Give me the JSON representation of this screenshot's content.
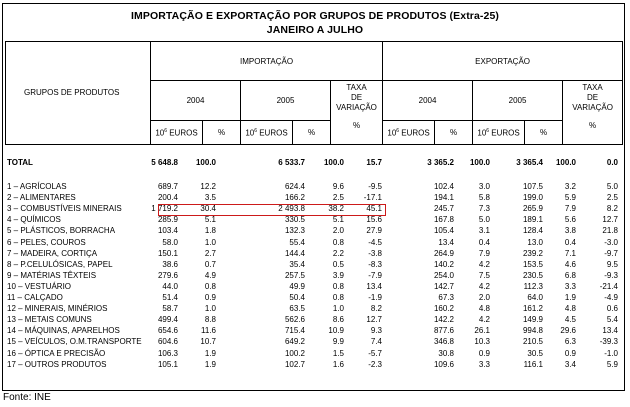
{
  "title": "IMPORTAÇÃO E EXPORTAÇÃO POR GRUPOS DE PRODUTOS (Extra-25)",
  "subtitle": "JANEIRO A JULHO",
  "header": {
    "groups": "GRUPOS DE PRODUTOS",
    "importacao": "IMPORTAÇÃO",
    "exportacao": "EXPORTAÇÃO",
    "y2004": "2004",
    "y2005": "2005",
    "taxa1": "TAXA",
    "taxa2": "DE",
    "taxa3": "VARIAÇÃO",
    "unit_pre": "10",
    "unit_exp": "6",
    "unit_post": " EUROS",
    "pct": "%"
  },
  "total": {
    "label": "TOTAL",
    "values": [
      "5 648.8",
      "100.0",
      "6 533.7",
      "100.0",
      "15.7",
      "3 365.2",
      "100.0",
      "3 365.4",
      "100.0",
      "0.0"
    ]
  },
  "rows": [
    {
      "label": "1   – AGRÍCOLAS",
      "values": [
        "689.7",
        "12.2",
        "624.4",
        "9.6",
        "-9.5",
        "102.4",
        "3.0",
        "107.5",
        "3.2",
        "5.0"
      ]
    },
    {
      "label": "2   – ALIMENTARES",
      "values": [
        "200.4",
        "3.5",
        "166.2",
        "2.5",
        "-17.1",
        "194.1",
        "5.8",
        "199.0",
        "5.9",
        "2.5"
      ]
    },
    {
      "label": "3   – COMBUSTÍVEIS MINERAIS",
      "values": [
        "1 719.2",
        "30.4",
        "2 493.8",
        "38.2",
        "45.1",
        "245.7",
        "7.3",
        "265.9",
        "7.9",
        "8.2"
      ]
    },
    {
      "label": "4   – QUÍMICOS",
      "values": [
        "285.9",
        "5.1",
        "330.5",
        "5.1",
        "15.6",
        "167.8",
        "5.0",
        "189.1",
        "5.6",
        "12.7"
      ]
    },
    {
      "label": "5   – PLÁSTICOS, BORRACHA",
      "values": [
        "103.4",
        "1.8",
        "132.3",
        "2.0",
        "27.9",
        "105.4",
        "3.1",
        "128.4",
        "3.8",
        "21.8"
      ]
    },
    {
      "label": "6   – PELES, COUROS",
      "values": [
        "58.0",
        "1.0",
        "55.4",
        "0.8",
        "-4.5",
        "13.4",
        "0.4",
        "13.0",
        "0.4",
        "-3.0"
      ]
    },
    {
      "label": "7   – MADEIRA, CORTIÇA",
      "values": [
        "150.1",
        "2.7",
        "144.4",
        "2.2",
        "-3.8",
        "264.9",
        "7.9",
        "239.2",
        "7.1",
        "-9.7"
      ]
    },
    {
      "label": "8   – P.CELULÓSICAS, PAPEL",
      "values": [
        "38.6",
        "0.7",
        "35.4",
        "0.5",
        "-8.3",
        "140.2",
        "4.2",
        "153.5",
        "4.6",
        "9.5"
      ]
    },
    {
      "label": "9   – MATÉRIAS TÊXTEIS",
      "values": [
        "279.6",
        "4.9",
        "257.5",
        "3.9",
        "-7.9",
        "254.0",
        "7.5",
        "230.5",
        "6.8",
        "-9.3"
      ]
    },
    {
      "label": "10 – VESTUÁRIO",
      "values": [
        "44.0",
        "0.8",
        "49.9",
        "0.8",
        "13.4",
        "142.7",
        "4.2",
        "112.3",
        "3.3",
        "-21.4"
      ]
    },
    {
      "label": "11 – CALÇADO",
      "values": [
        "51.4",
        "0.9",
        "50.4",
        "0.8",
        "-1.9",
        "67.3",
        "2.0",
        "64.0",
        "1.9",
        "-4.9"
      ]
    },
    {
      "label": "12 – MINERAIS, MINÉRIOS",
      "values": [
        "58.7",
        "1.0",
        "63.5",
        "1.0",
        "8.2",
        "160.2",
        "4.8",
        "161.2",
        "4.8",
        "0.6"
      ]
    },
    {
      "label": "13 – METAIS COMUNS",
      "values": [
        "499.4",
        "8.8",
        "562.6",
        "8.6",
        "12.7",
        "142.2",
        "4.2",
        "149.9",
        "4.5",
        "5.4"
      ]
    },
    {
      "label": "14 – MÁQUINAS, APARELHOS",
      "values": [
        "654.6",
        "11.6",
        "715.4",
        "10.9",
        "9.3",
        "877.6",
        "26.1",
        "994.8",
        "29.6",
        "13.4"
      ]
    },
    {
      "label": "15 – VEÍCULOS, O.M.TRANSPORTE",
      "values": [
        "604.6",
        "10.7",
        "649.2",
        "9.9",
        "7.4",
        "346.8",
        "10.3",
        "210.5",
        "6.3",
        "-39.3"
      ]
    },
    {
      "label": "16 – ÓPTICA E PRECISÃO",
      "values": [
        "106.3",
        "1.9",
        "100.2",
        "1.5",
        "-5.7",
        "30.8",
        "0.9",
        "30.5",
        "0.9",
        "-1.0"
      ]
    },
    {
      "label": "17 – OUTROS PRODUTOS",
      "values": [
        "105.1",
        "1.9",
        "102.7",
        "1.6",
        "-2.3",
        "109.6",
        "3.3",
        "116.1",
        "3.4",
        "5.9"
      ]
    }
  ],
  "highlight_color": "#cc1a1a",
  "source": "Fonte: INE"
}
